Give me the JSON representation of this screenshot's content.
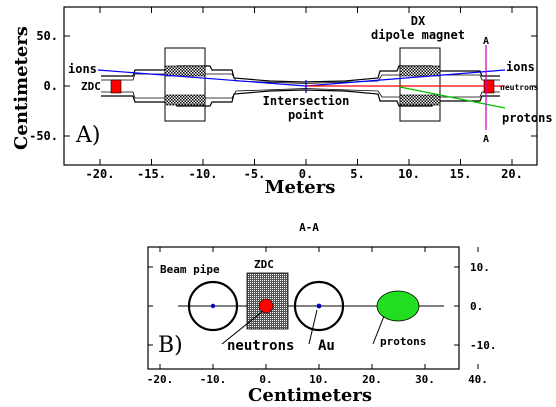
{
  "panel_a": {
    "tag": "A)",
    "x_axis_title": "Meters",
    "y_axis_title": "Centimeters",
    "x_ticks": [
      {
        "value": -20,
        "label": "-20."
      },
      {
        "value": -15,
        "label": "-15."
      },
      {
        "value": -10,
        "label": "-10."
      },
      {
        "value": -5,
        "label": "-5."
      },
      {
        "value": 0,
        "label": "0."
      },
      {
        "value": 5,
        "label": "5."
      },
      {
        "value": 10,
        "label": "10."
      },
      {
        "value": 15,
        "label": "15."
      },
      {
        "value": 20,
        "label": "20."
      }
    ],
    "y_ticks": [
      {
        "value": 50,
        "label": "50."
      },
      {
        "value": 0,
        "label": "0."
      },
      {
        "value": -50,
        "label": "-50."
      }
    ],
    "labels": {
      "ions_left": "ions",
      "zdc": "ZDC",
      "magnet_line1": "DX",
      "magnet_line2": "dipole magnet",
      "section_top": "A",
      "section_bottom": "A",
      "ions_right": "ions",
      "neutrons": "neutrons",
      "protons": "protons",
      "ip_line1": "Intersection",
      "ip_line2": "point"
    },
    "colors": {
      "ions": "#0000ff",
      "neutrons": "#ff0000",
      "protons": "#00c000",
      "section": "#c000c0",
      "zdc": "#ff0000"
    }
  },
  "panel_b": {
    "header": "A-A",
    "tag": "B)",
    "x_axis_title": "Centimeters",
    "x_ticks": [
      {
        "value": -20,
        "label": "-20."
      },
      {
        "value": -10,
        "label": "-10."
      },
      {
        "value": 0,
        "label": "0."
      },
      {
        "value": 10,
        "label": "10."
      },
      {
        "value": 20,
        "label": "20."
      },
      {
        "value": 30,
        "label": "30."
      },
      {
        "value": 40,
        "label": "40."
      }
    ],
    "y_ticks": [
      {
        "value": 10,
        "label": "10."
      },
      {
        "value": 0,
        "label": "0."
      },
      {
        "value": -10,
        "label": "-10."
      }
    ],
    "labels": {
      "beam_pipe": "Beam pipe",
      "zdc": "ZDC",
      "neutrons": "neutrons",
      "au": "Au",
      "protons": "protons"
    },
    "colors": {
      "beam": "#0000c0",
      "neutron_spot": "#ff0000",
      "proton_spot": "#22dd22"
    }
  }
}
